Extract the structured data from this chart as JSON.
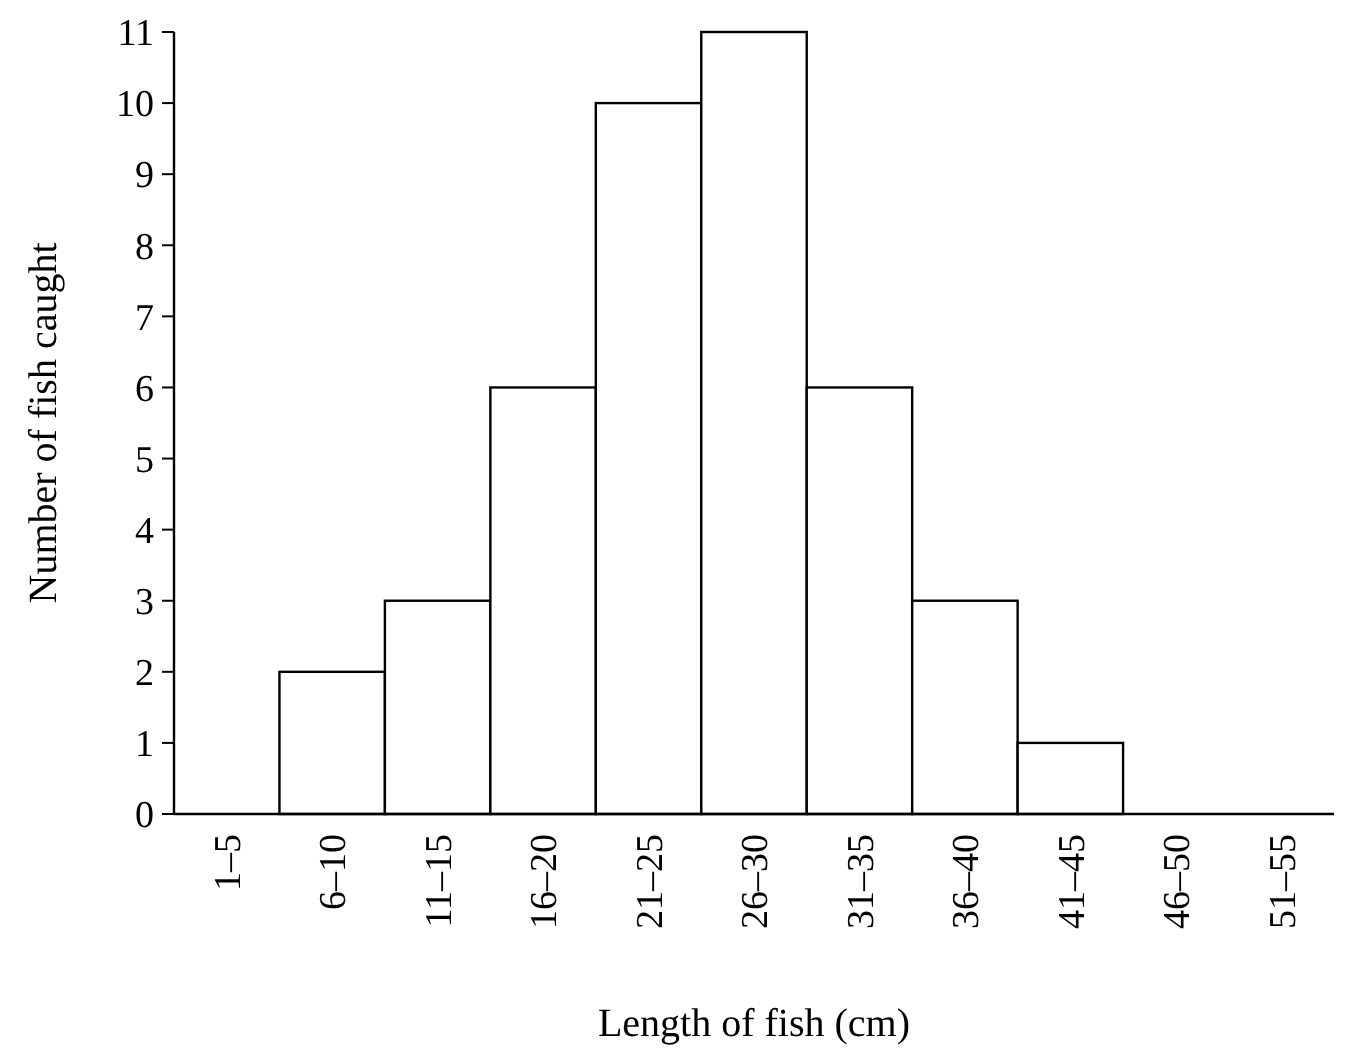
{
  "chart_data": {
    "type": "bar",
    "xlabel": "Length of fish (cm)",
    "ylabel": "Number of fish caught",
    "categories": [
      "1–5",
      "6–10",
      "11–15",
      "16–20",
      "21–25",
      "26–30",
      "31–35",
      "36–40",
      "41–45",
      "46–50",
      "51–55"
    ],
    "values": [
      0,
      2,
      3,
      6,
      10,
      11,
      6,
      3,
      1,
      0,
      0
    ],
    "color": "#ffffff",
    "ylim": [
      0,
      11
    ],
    "yticks": [
      0,
      1,
      2,
      3,
      4,
      5,
      6,
      7,
      8,
      9,
      10,
      11
    ],
    "grid": false
  }
}
